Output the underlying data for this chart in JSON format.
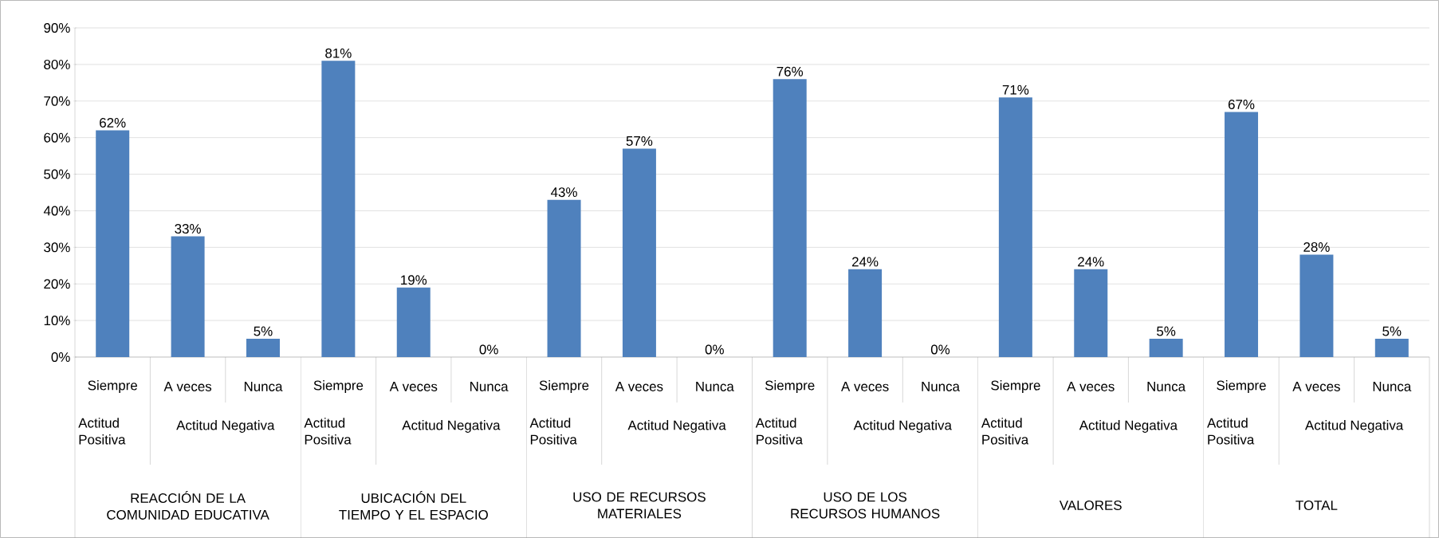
{
  "chart_data": {
    "type": "bar",
    "color": "#4f81bd",
    "categories": [
      "Siempre",
      "A veces",
      "Nunca",
      "Siempre",
      "A veces",
      "Nunca",
      "Siempre",
      "A veces",
      "Nunca",
      "Siempre",
      "A veces",
      "Nunca",
      "Siempre",
      "A veces",
      "Nunca",
      "Siempre",
      "A veces",
      "Nunca"
    ],
    "values": [
      62,
      33,
      5,
      81,
      19,
      0,
      43,
      57,
      0,
      76,
      24,
      0,
      71,
      24,
      5,
      67,
      28,
      5
    ],
    "value_labels": [
      "62%",
      "33%",
      "5%",
      "81%",
      "19%",
      "0%",
      "43%",
      "57%",
      "0%",
      "76%",
      "24%",
      "0%",
      "71%",
      "24%",
      "5%",
      "67%",
      "28%",
      "5%"
    ],
    "ylim": [
      0,
      90
    ],
    "yticks": [
      {
        "value": 0,
        "label": "0%"
      },
      {
        "value": 10,
        "label": "10%"
      },
      {
        "value": 20,
        "label": "20%"
      },
      {
        "value": 30,
        "label": "30%"
      },
      {
        "value": 40,
        "label": "40%"
      },
      {
        "value": 50,
        "label": "50%"
      },
      {
        "value": 60,
        "label": "60%"
      },
      {
        "value": 70,
        "label": "70%"
      },
      {
        "value": 80,
        "label": "80%"
      },
      {
        "value": 90,
        "label": "90%"
      }
    ],
    "grid": "y",
    "annotations": [
      "Actitud Positiva",
      "Actitud Negativa",
      "Actitud Positiva",
      "Actitud Negativa",
      "Actitud Positiva",
      "Actitud Negativa",
      "Actitud Positiva",
      "Actitud Negativa",
      "Actitud Positiva",
      "Actitud Negativa",
      "Actitud Positiva",
      "Actitud Negativa",
      "REACCIÓN DE LA COMUNIDAD EDUCATIVA",
      "UBICACIÓN DEL TIEMPO Y EL ESPACIO",
      "USO DE RECURSOS MATERIALES",
      "USO DE LOS RECURSOS HUMANOS",
      "VALORES",
      "TOTAL"
    ]
  }
}
